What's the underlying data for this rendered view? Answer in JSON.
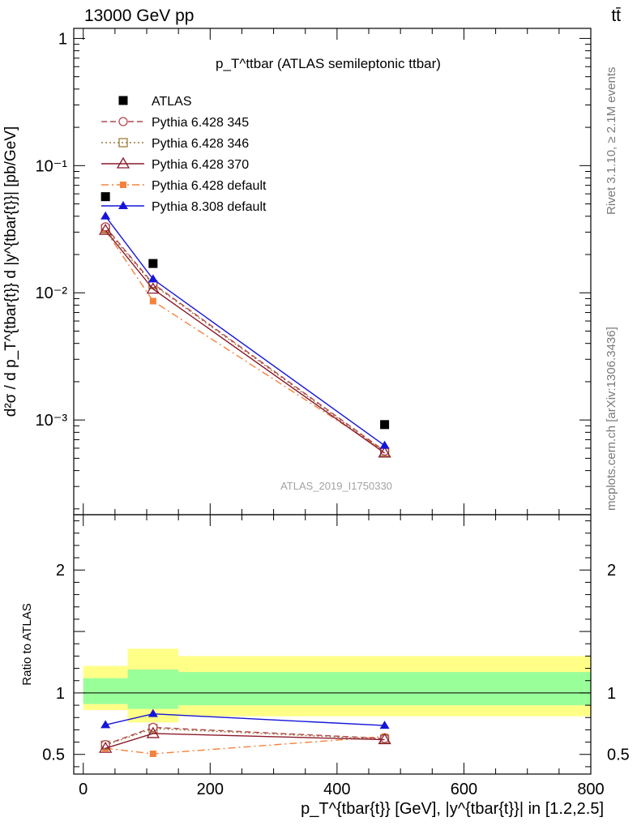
{
  "header": {
    "left": "13000 GeV pp",
    "right": "tt̄"
  },
  "side_labels": {
    "rivet": "Rivet 3.1.10, ≥ 2.1M events",
    "mcplots": "mcplots.cern.ch [arXiv:1306.3436]"
  },
  "watermark": "ATLAS_2019_I1750330",
  "colors": {
    "atlas": "#000000",
    "p345": "#b2474e",
    "p346": "#9b7d3c",
    "p370": "#8b1a2b",
    "p6def": "#f5823c",
    "p8def": "#1515d8",
    "band_outer": "#ffff88",
    "band_inner": "#99ff99"
  },
  "chart_data": [
    {
      "type": "line",
      "panel": "main",
      "title": "p_T^ttbar (ATLAS semileptonic ttbar)",
      "ylabel": "d²σ / d p_T^{tbar{t}} d |y^{tbar{t}}| [pb/GeV]",
      "xlim": [
        -15,
        800
      ],
      "ylim": [
        0.00018,
        1.2
      ],
      "yscale": "log",
      "ytick_labels": [
        "1",
        "10⁻¹",
        "10⁻²",
        "10⁻³"
      ],
      "legend_position": "top-left",
      "x": [
        35,
        110,
        475
      ],
      "series": [
        {
          "name": "ATLAS",
          "values": [
            0.057,
            0.017,
            0.00092
          ],
          "style": "data"
        },
        {
          "name": "Pythia 6.428 345",
          "values": [
            0.033,
            0.0118,
            0.00057
          ],
          "style": "circle-dashed"
        },
        {
          "name": "Pythia 6.428 346",
          "values": [
            0.032,
            0.0116,
            0.00056
          ],
          "style": "square-dotted"
        },
        {
          "name": "Pythia 6.428 370",
          "values": [
            0.031,
            0.0107,
            0.00055
          ],
          "style": "triangle-solid"
        },
        {
          "name": "Pythia 6.428 default",
          "values": [
            0.031,
            0.0086,
            0.00057
          ],
          "style": "filled-square-dashdot"
        },
        {
          "name": "Pythia 8.308 default",
          "values": [
            0.04,
            0.0128,
            0.00063
          ],
          "style": "filled-triangle-solid"
        }
      ]
    },
    {
      "type": "line",
      "panel": "ratio",
      "ylabel": "Ratio to ATLAS",
      "xlabel": "p_T^{tbar{t}} [GeV], |y^{tbar{t}}| in [1.2,2.5]",
      "xlim": [
        -15,
        800
      ],
      "ylim": [
        0.34,
        2.45
      ],
      "ytick_labels": [
        "0.5",
        "1",
        "2"
      ],
      "xtick_labels": [
        "0",
        "200",
        "400",
        "600",
        "800"
      ],
      "bands": [
        {
          "x0": 0,
          "x1": 70,
          "outer": [
            0.86,
            1.22
          ],
          "inner": [
            0.91,
            1.12
          ]
        },
        {
          "x0": 70,
          "x1": 150,
          "outer": [
            0.76,
            1.36
          ],
          "inner": [
            0.87,
            1.19
          ]
        },
        {
          "x0": 150,
          "x1": 800,
          "outer": [
            0.81,
            1.3
          ],
          "inner": [
            0.9,
            1.17
          ]
        }
      ],
      "x": [
        35,
        110,
        475
      ],
      "series": [
        {
          "name": "Pythia 6.428 345",
          "values": [
            0.58,
            0.72,
            0.63
          ]
        },
        {
          "name": "Pythia 6.428 346",
          "values": [
            0.575,
            0.71,
            0.625
          ]
        },
        {
          "name": "Pythia 6.428 370",
          "values": [
            0.55,
            0.67,
            0.62
          ]
        },
        {
          "name": "Pythia 6.428 default",
          "values": [
            0.55,
            0.505,
            0.645
          ]
        },
        {
          "name": "Pythia 8.308 default",
          "values": [
            0.74,
            0.83,
            0.735
          ]
        }
      ]
    }
  ]
}
